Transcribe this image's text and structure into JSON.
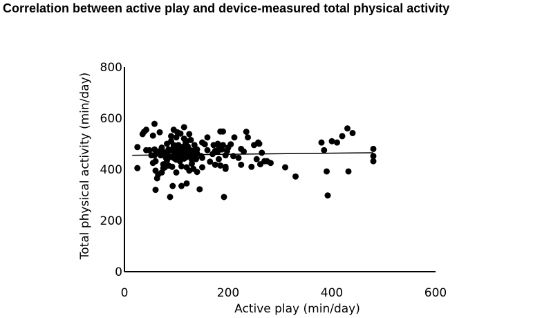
{
  "chart_data": {
    "type": "scatter",
    "title": "Correlation between active play and device-measured total physical activity",
    "xlabel": "Active play (min/day)",
    "ylabel": "Total physical activity (min/day)",
    "xlim": [
      0,
      600
    ],
    "ylim": [
      0,
      800
    ],
    "xticks": [
      0,
      200,
      400,
      600
    ],
    "yticks": [
      0,
      200,
      400,
      600,
      800
    ],
    "grid": false,
    "legend": "none",
    "colors": {
      "points": "#000000",
      "axes": "#000000"
    },
    "trendline": {
      "x": [
        15,
        480
      ],
      "y": [
        455,
        465
      ]
    },
    "points": [
      [
        25,
        487
      ],
      [
        25,
        405
      ],
      [
        35,
        538
      ],
      [
        38,
        547
      ],
      [
        42,
        555
      ],
      [
        42,
        475
      ],
      [
        48,
        475
      ],
      [
        52,
        455
      ],
      [
        55,
        425
      ],
      [
        55,
        532
      ],
      [
        58,
        478
      ],
      [
        58,
        455
      ],
      [
        58,
        578
      ],
      [
        60,
        395
      ],
      [
        60,
        432
      ],
      [
        60,
        320
      ],
      [
        63,
        365
      ],
      [
        65,
        380
      ],
      [
        65,
        470
      ],
      [
        68,
        545
      ],
      [
        70,
        455
      ],
      [
        72,
        388
      ],
      [
        72,
        485
      ],
      [
        75,
        405
      ],
      [
        75,
        468
      ],
      [
        75,
        420
      ],
      [
        78,
        408
      ],
      [
        80,
        455
      ],
      [
        80,
        445
      ],
      [
        82,
        435
      ],
      [
        82,
        500
      ],
      [
        84,
        468
      ],
      [
        85,
        478
      ],
      [
        85,
        415
      ],
      [
        88,
        292
      ],
      [
        90,
        510
      ],
      [
        90,
        448
      ],
      [
        90,
        530
      ],
      [
        92,
        410
      ],
      [
        92,
        478
      ],
      [
        93,
        335
      ],
      [
        95,
        555
      ],
      [
        95,
        495
      ],
      [
        95,
        468
      ],
      [
        97,
        442
      ],
      [
        98,
        455
      ],
      [
        100,
        525
      ],
      [
        100,
        482
      ],
      [
        100,
        438
      ],
      [
        100,
        388
      ],
      [
        102,
        475
      ],
      [
        102,
        545
      ],
      [
        104,
        495
      ],
      [
        105,
        468
      ],
      [
        105,
        450
      ],
      [
        107,
        432
      ],
      [
        108,
        540
      ],
      [
        110,
        478
      ],
      [
        110,
        455
      ],
      [
        110,
        412
      ],
      [
        110,
        335
      ],
      [
        112,
        488
      ],
      [
        113,
        462
      ],
      [
        115,
        565
      ],
      [
        115,
        442
      ],
      [
        115,
        520
      ],
      [
        117,
        475
      ],
      [
        118,
        505
      ],
      [
        120,
        448
      ],
      [
        120,
        480
      ],
      [
        120,
        510
      ],
      [
        120,
        408
      ],
      [
        120,
        345
      ],
      [
        122,
        490
      ],
      [
        123,
        468
      ],
      [
        125,
        538
      ],
      [
        125,
        455
      ],
      [
        125,
        395
      ],
      [
        127,
        475
      ],
      [
        128,
        515
      ],
      [
        130,
        470
      ],
      [
        130,
        438
      ],
      [
        130,
        422
      ],
      [
        132,
        460
      ],
      [
        133,
        402
      ],
      [
        135,
        495
      ],
      [
        135,
        475
      ],
      [
        135,
        450
      ],
      [
        138,
        440
      ],
      [
        140,
        478
      ],
      [
        140,
        462
      ],
      [
        140,
        390
      ],
      [
        145,
        322
      ],
      [
        148,
        452
      ],
      [
        150,
        445
      ],
      [
        150,
        505
      ],
      [
        150,
        408
      ],
      [
        155,
        498
      ],
      [
        160,
        475
      ],
      [
        160,
        525
      ],
      [
        165,
        430
      ],
      [
        170,
        460
      ],
      [
        172,
        495
      ],
      [
        175,
        472
      ],
      [
        175,
        418
      ],
      [
        180,
        500
      ],
      [
        180,
        470
      ],
      [
        182,
        490
      ],
      [
        182,
        440
      ],
      [
        185,
        548
      ],
      [
        185,
        415
      ],
      [
        188,
        478
      ],
      [
        190,
        548
      ],
      [
        190,
        495
      ],
      [
        192,
        292
      ],
      [
        195,
        455
      ],
      [
        195,
        410
      ],
      [
        195,
        402
      ],
      [
        198,
        472
      ],
      [
        200,
        485
      ],
      [
        205,
        498
      ],
      [
        210,
        452
      ],
      [
        212,
        525
      ],
      [
        220,
        445
      ],
      [
        225,
        480
      ],
      [
        225,
        418
      ],
      [
        230,
        470
      ],
      [
        235,
        547
      ],
      [
        238,
        525
      ],
      [
        245,
        410
      ],
      [
        250,
        495
      ],
      [
        255,
        440
      ],
      [
        258,
        505
      ],
      [
        260,
        500
      ],
      [
        262,
        420
      ],
      [
        265,
        465
      ],
      [
        270,
        432
      ],
      [
        275,
        432
      ],
      [
        282,
        425
      ],
      [
        310,
        408
      ],
      [
        330,
        372
      ],
      [
        380,
        505
      ],
      [
        385,
        475
      ],
      [
        390,
        392
      ],
      [
        392,
        298
      ],
      [
        400,
        510
      ],
      [
        410,
        505
      ],
      [
        420,
        530
      ],
      [
        430,
        560
      ],
      [
        432,
        392
      ],
      [
        440,
        542
      ],
      [
        480,
        480
      ],
      [
        480,
        452
      ],
      [
        480,
        432
      ]
    ]
  }
}
